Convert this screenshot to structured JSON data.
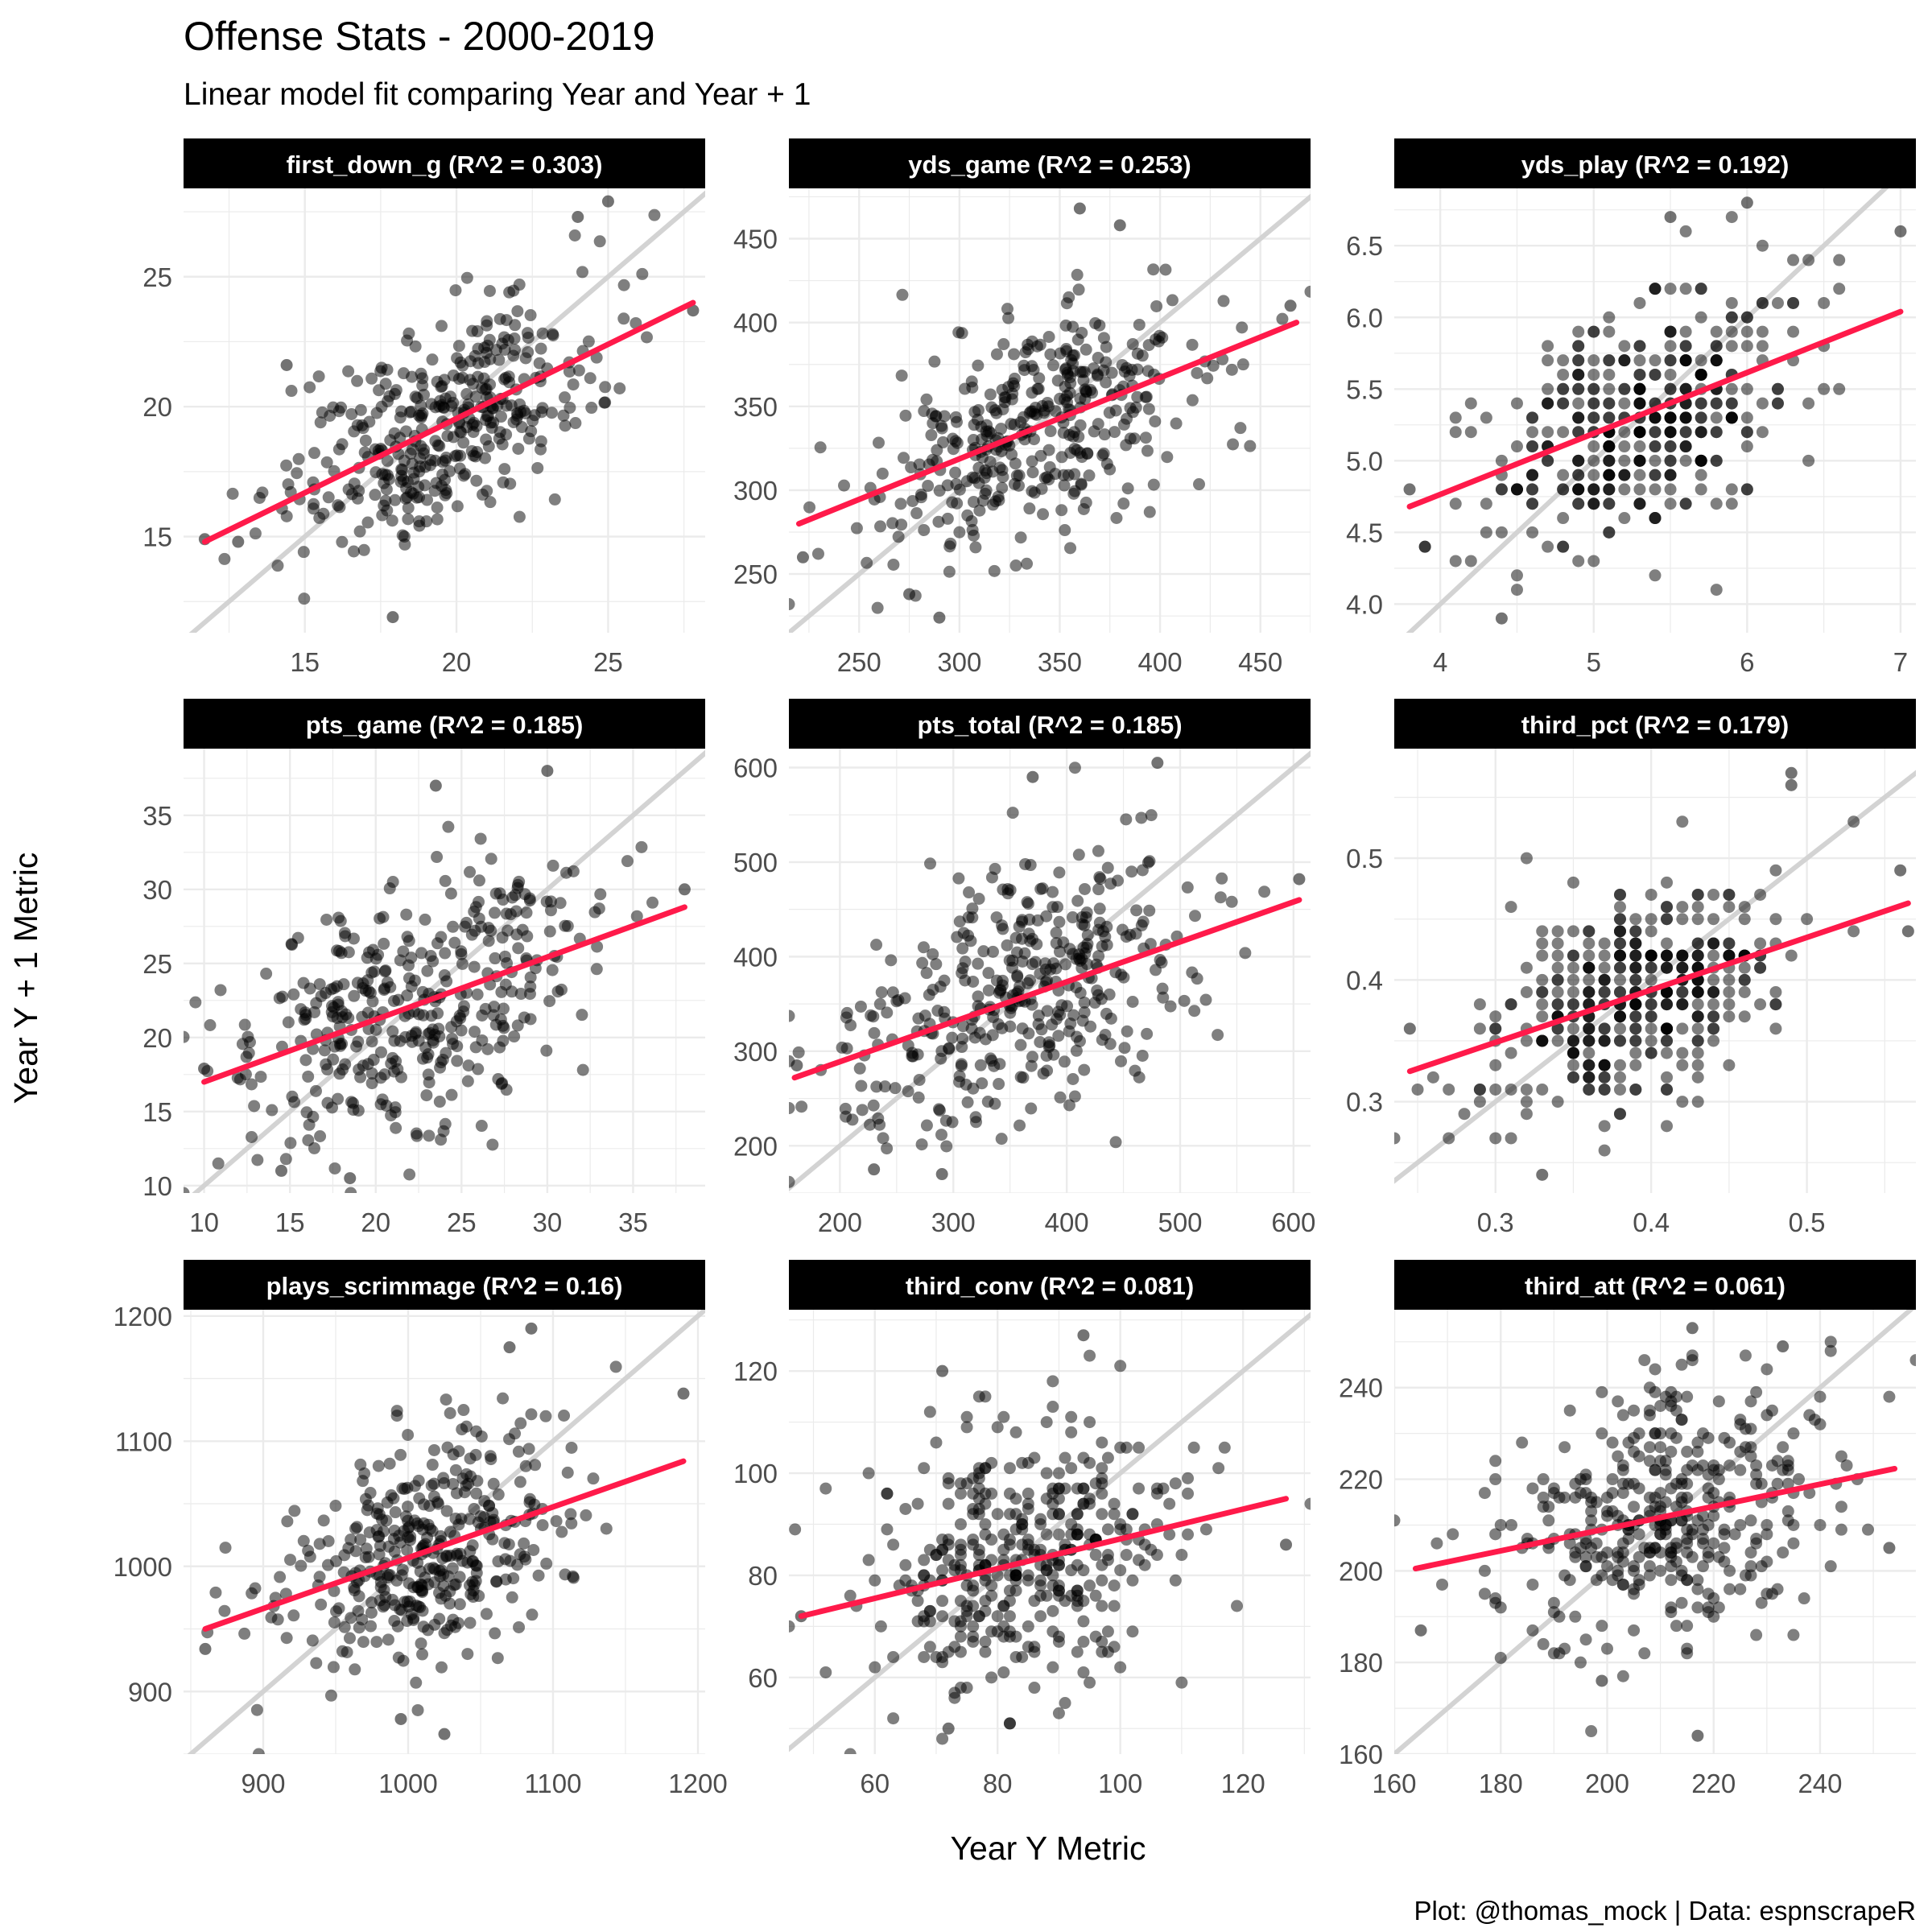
{
  "title": "Offense Stats - 2000-2019",
  "subtitle": "Linear model fit comparing Year and Year + 1",
  "xlabel": "Year Y Metric",
  "ylabel": "Year Y + 1 Metric",
  "caption": "Plot: @thomas_mock | Data: espnscrapeR",
  "colors": {
    "point": "#000000",
    "fit_line": "#ff1a4a",
    "identity_line": "#d3d3d3",
    "strip_bg": "#000000",
    "strip_text": "#ffffff",
    "grid": "#ebebeb"
  },
  "chart_data": [
    {
      "type": "scatter",
      "panel": "first_down_g (R^2 = 0.303)",
      "xlim": [
        11,
        28.2
      ],
      "ylim": [
        11.3,
        28.4
      ],
      "xticks": [
        15,
        20,
        25
      ],
      "yticks": [
        15,
        20,
        25
      ],
      "fit": {
        "x": [
          11.7,
          27.8
        ],
        "y": [
          14.8,
          24.0
        ]
      },
      "cloud": {
        "n": 380,
        "mx": 19.5,
        "my": 19.3,
        "sx": 2.6,
        "sy": 2.3,
        "r": 0.55,
        "step": 0
      },
      "points": [
        {
          "x": 25,
          "y": 27.9
        },
        {
          "x": 24,
          "y": 27.3
        },
        {
          "x": 17.9,
          "y": 11.9
        },
        {
          "x": 14.4,
          "y": 21.6
        },
        {
          "x": 27.8,
          "y": 23.7
        },
        {
          "x": 11.7,
          "y": 14.9
        },
        {
          "x": 12.8,
          "y": 14.8
        }
      ]
    },
    {
      "type": "scatter",
      "panel": "yds_game (R^2 = 0.253)",
      "xlim": [
        215,
        475
      ],
      "ylim": [
        215,
        480
      ],
      "xticks": [
        250,
        300,
        350,
        400,
        450
      ],
      "yticks": [
        250,
        300,
        350,
        400,
        450
      ],
      "fit": {
        "x": [
          220,
          468
        ],
        "y": [
          280,
          400
        ]
      },
      "cloud": {
        "n": 380,
        "mx": 340,
        "my": 338,
        "sx": 42,
        "sy": 38,
        "r": 0.5,
        "step": 0
      },
      "points": [
        {
          "x": 360,
          "y": 468
        },
        {
          "x": 380,
          "y": 458
        },
        {
          "x": 290,
          "y": 224
        },
        {
          "x": 275,
          "y": 238
        },
        {
          "x": 465,
          "y": 410
        },
        {
          "x": 222,
          "y": 260
        }
      ]
    },
    {
      "type": "scatter",
      "panel": "yds_play (R^2 = 0.192)",
      "xlim": [
        3.7,
        7.1
      ],
      "ylim": [
        3.8,
        6.9
      ],
      "xticks": [
        4,
        5,
        6,
        7
      ],
      "yticks": [
        4.0,
        4.5,
        5.0,
        5.5,
        6.0,
        6.5
      ],
      "fit": {
        "x": [
          3.8,
          7.0
        ],
        "y": [
          4.68,
          6.04
        ]
      },
      "cloud": {
        "n": 380,
        "mx": 5.3,
        "my": 5.3,
        "sx": 0.5,
        "sy": 0.45,
        "r": 0.44,
        "step": 0.1
      },
      "points": [
        {
          "x": 5.5,
          "y": 6.7
        },
        {
          "x": 6.0,
          "y": 6.8
        },
        {
          "x": 4.4,
          "y": 3.9
        },
        {
          "x": 7.0,
          "y": 6.6
        },
        {
          "x": 3.8,
          "y": 4.8
        },
        {
          "x": 3.9,
          "y": 4.4
        }
      ]
    },
    {
      "type": "scatter",
      "panel": "pts_game (R^2 = 0.185)",
      "xlim": [
        8.8,
        39.2
      ],
      "ylim": [
        9.5,
        39.5
      ],
      "xticks": [
        10,
        15,
        20,
        25,
        30,
        35
      ],
      "yticks": [
        10,
        15,
        20,
        25,
        30,
        35
      ],
      "fit": {
        "x": [
          10,
          38
        ],
        "y": [
          17.0,
          28.8
        ]
      },
      "cloud": {
        "n": 380,
        "mx": 22.5,
        "my": 22.5,
        "sx": 5.2,
        "sy": 4.8,
        "r": 0.43,
        "step": 0
      },
      "points": [
        {
          "x": 30,
          "y": 38
        },
        {
          "x": 23.5,
          "y": 37
        },
        {
          "x": 18.5,
          "y": 10.5
        },
        {
          "x": 38,
          "y": 30
        },
        {
          "x": 10,
          "y": 17.9
        },
        {
          "x": 14.5,
          "y": 11
        }
      ]
    },
    {
      "type": "scatter",
      "panel": "pts_total (R^2 = 0.185)",
      "xlim": [
        155,
        615
      ],
      "ylim": [
        150,
        620
      ],
      "xticks": [
        200,
        300,
        400,
        500,
        600
      ],
      "yticks": [
        200,
        300,
        400,
        500,
        600
      ],
      "fit": {
        "x": [
          160,
          605
        ],
        "y": [
          272,
          460
        ]
      },
      "cloud": {
        "n": 380,
        "mx": 360,
        "my": 360,
        "sx": 82,
        "sy": 75,
        "r": 0.43,
        "step": 0
      },
      "points": [
        {
          "x": 480,
          "y": 605
        },
        {
          "x": 370,
          "y": 590
        },
        {
          "x": 290,
          "y": 170
        },
        {
          "x": 605,
          "y": 482
        },
        {
          "x": 162,
          "y": 285
        },
        {
          "x": 230,
          "y": 175
        }
      ]
    },
    {
      "type": "scatter",
      "panel": "third_pct (R^2 = 0.179)",
      "xlim": [
        0.235,
        0.57
      ],
      "ylim": [
        0.225,
        0.59
      ],
      "xticks": [
        0.3,
        0.4,
        0.5
      ],
      "yticks": [
        0.3,
        0.4,
        0.5
      ],
      "fit": {
        "x": [
          0.245,
          0.565
        ],
        "y": [
          0.325,
          0.463
        ]
      },
      "cloud": {
        "n": 380,
        "mx": 0.39,
        "my": 0.385,
        "sx": 0.048,
        "sy": 0.045,
        "r": 0.42,
        "step": 0.01
      },
      "points": [
        {
          "x": 0.49,
          "y": 0.57
        },
        {
          "x": 0.49,
          "y": 0.56
        },
        {
          "x": 0.33,
          "y": 0.24
        },
        {
          "x": 0.565,
          "y": 0.44
        },
        {
          "x": 0.56,
          "y": 0.49
        },
        {
          "x": 0.245,
          "y": 0.36
        }
      ]
    },
    {
      "type": "scatter",
      "panel": "plays_scrimmage (R^2 = 0.16)",
      "xlim": [
        845,
        1205
      ],
      "ylim": [
        850,
        1205
      ],
      "xticks": [
        900,
        1000,
        1100,
        1200
      ],
      "yticks": [
        900,
        1000,
        1100,
        1200
      ],
      "fit": {
        "x": [
          860,
          1190
        ],
        "y": [
          950,
          1084
        ]
      },
      "cloud": {
        "n": 380,
        "mx": 1012,
        "my": 1012,
        "sx": 48,
        "sy": 48,
        "r": 0.4,
        "step": 0
      },
      "points": [
        {
          "x": 1085,
          "y": 1190
        },
        {
          "x": 1070,
          "y": 1175
        },
        {
          "x": 1025,
          "y": 866
        },
        {
          "x": 1190,
          "y": 1138
        },
        {
          "x": 860,
          "y": 934
        },
        {
          "x": 995,
          "y": 878
        }
      ]
    },
    {
      "type": "scatter",
      "panel": "third_conv (R^2 = 0.081)",
      "xlim": [
        46,
        131
      ],
      "ylim": [
        45,
        132
      ],
      "xticks": [
        60,
        80,
        100,
        120
      ],
      "yticks": [
        60,
        80,
        100,
        120
      ],
      "fit": {
        "x": [
          48,
          127
        ],
        "y": [
          72,
          95
        ]
      },
      "cloud": {
        "n": 380,
        "mx": 84,
        "my": 83,
        "sx": 13,
        "sy": 13,
        "r": 0.28,
        "step": 1
      },
      "points": [
        {
          "x": 94,
          "y": 127
        },
        {
          "x": 71,
          "y": 120
        },
        {
          "x": 72,
          "y": 50
        },
        {
          "x": 127,
          "y": 86
        },
        {
          "x": 48,
          "y": 72
        },
        {
          "x": 82,
          "y": 51
        }
      ]
    },
    {
      "type": "scatter",
      "panel": "third_att (R^2 = 0.061)",
      "xlim": [
        160,
        258
      ],
      "ylim": [
        160,
        257
      ],
      "xticks": [
        160,
        180,
        200,
        220,
        240
      ],
      "yticks": [
        160,
        180,
        200,
        220,
        240
      ],
      "fit": {
        "x": [
          164,
          254
        ],
        "y": [
          200.5,
          222.3
        ]
      },
      "cloud": {
        "n": 380,
        "mx": 212,
        "my": 212,
        "sx": 15,
        "sy": 15,
        "r": 0.25,
        "step": 1
      },
      "points": [
        {
          "x": 216,
          "y": 253
        },
        {
          "x": 233,
          "y": 249
        },
        {
          "x": 217,
          "y": 164
        },
        {
          "x": 253,
          "y": 205
        },
        {
          "x": 165,
          "y": 187
        },
        {
          "x": 199,
          "y": 176
        }
      ]
    }
  ]
}
